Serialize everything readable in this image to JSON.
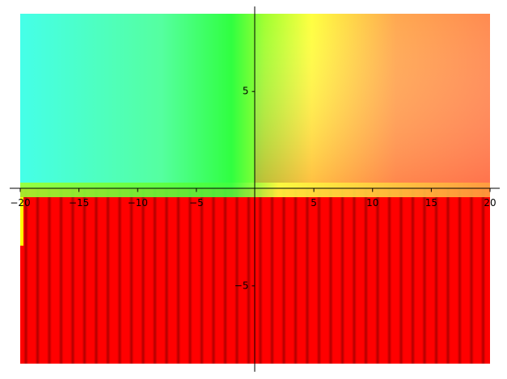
{
  "chart_data": {
    "type": "complex_plot",
    "xlim": [
      -20,
      20
    ],
    "ylim": [
      -9,
      9
    ],
    "xticks": [
      {
        "value": -20,
        "label": "−20"
      },
      {
        "value": -15,
        "label": "−15"
      },
      {
        "value": -10,
        "label": "−10"
      },
      {
        "value": -5,
        "label": "−5"
      },
      5,
      10,
      15,
      20
    ],
    "yticks": [
      {
        "value": -5,
        "label": "−5"
      },
      5
    ]
  }
}
